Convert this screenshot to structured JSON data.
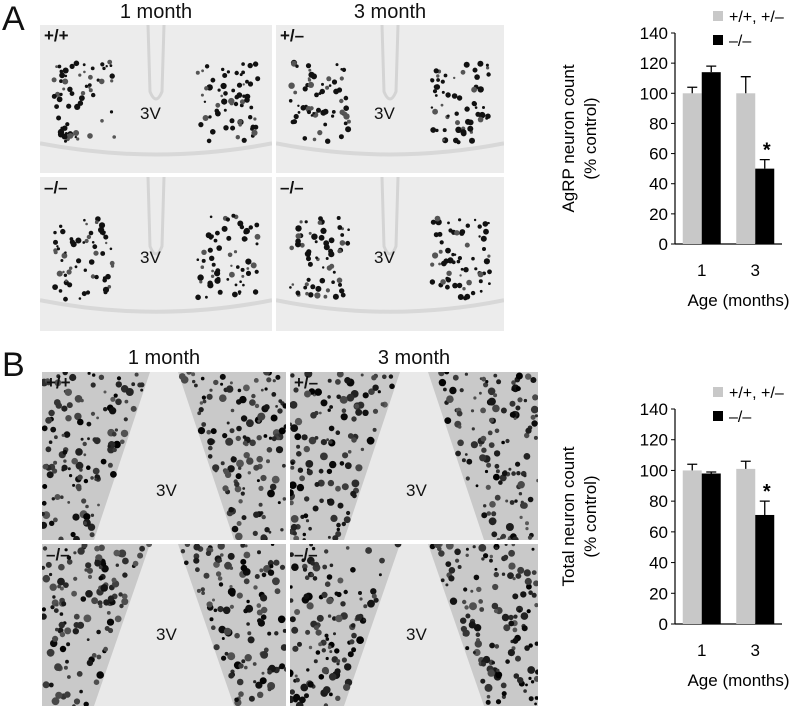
{
  "panel_a": {
    "letter": "A",
    "col_titles": [
      "1 month",
      "3 month"
    ],
    "images": [
      {
        "genotype": "+/+",
        "ventricle": "3V"
      },
      {
        "genotype": "+/–",
        "ventricle": "3V"
      },
      {
        "genotype": "–/–",
        "ventricle": "3V"
      },
      {
        "genotype": "–/–",
        "ventricle": "3V"
      }
    ]
  },
  "panel_b": {
    "letter": "B",
    "col_titles": [
      "1 month",
      "3 month"
    ],
    "images": [
      {
        "genotype": "+/+",
        "ventricle": "3V"
      },
      {
        "genotype": "+/–",
        "ventricle": "3V"
      },
      {
        "genotype": "–/–",
        "ventricle": "3V"
      },
      {
        "genotype": "–/–",
        "ventricle": "3V"
      }
    ]
  },
  "chart_data": [
    {
      "type": "bar",
      "panel": "A",
      "categories": [
        "1",
        "3"
      ],
      "series": [
        {
          "name": "+/+, +/–",
          "color": "#c8c8c8",
          "values": [
            100,
            100
          ],
          "errors": [
            4,
            11
          ]
        },
        {
          "name": "–/–",
          "color": "#000000",
          "values": [
            114,
            50
          ],
          "errors": [
            4,
            6
          ]
        }
      ],
      "annotations": [
        {
          "category": "3",
          "series": 1,
          "text": "*"
        }
      ],
      "xlabel": "Age (months)",
      "ylabel_lines": [
        "AgRP neuron count",
        "(% control)"
      ],
      "ylim": [
        0,
        140
      ],
      "yticks": [
        0,
        20,
        40,
        60,
        80,
        100,
        120,
        140
      ],
      "legend_position": "top-right",
      "grid": false
    },
    {
      "type": "bar",
      "panel": "B",
      "categories": [
        "1",
        "3"
      ],
      "series": [
        {
          "name": "+/+, +/–",
          "color": "#c8c8c8",
          "values": [
            100,
            101
          ],
          "errors": [
            4,
            5
          ]
        },
        {
          "name": "–/–",
          "color": "#000000",
          "values": [
            98,
            71
          ],
          "errors": [
            1,
            9
          ]
        }
      ],
      "annotations": [
        {
          "category": "3",
          "series": 1,
          "text": "*"
        }
      ],
      "xlabel": "Age (months)",
      "ylabel_lines": [
        "Total neuron count",
        "(% control)"
      ],
      "ylim": [
        0,
        140
      ],
      "yticks": [
        0,
        20,
        40,
        60,
        80,
        100,
        120,
        140
      ],
      "legend_position": "top-right",
      "grid": false
    }
  ]
}
